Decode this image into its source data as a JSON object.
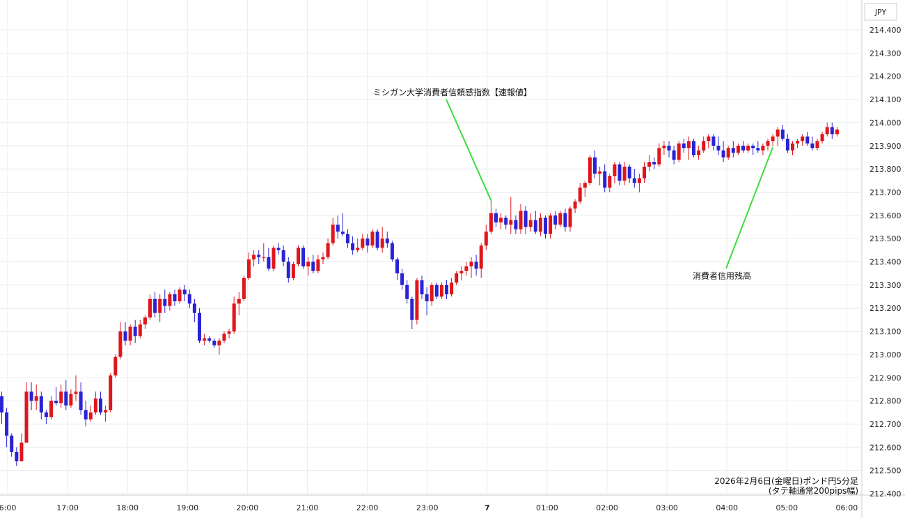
{
  "chart_data": {
    "type": "candlestick",
    "currency_label": "JPY",
    "y_ticks": [
      "214.400",
      "214.300",
      "214.200",
      "214.100",
      "214.000",
      "213.900",
      "213.800",
      "213.700",
      "213.600",
      "213.500",
      "213.400",
      "213.300",
      "213.200",
      "213.100",
      "213.000",
      "212.900",
      "212.800",
      "212.700",
      "212.600",
      "212.500",
      "212.400"
    ],
    "ylim": [
      212.4,
      214.45
    ],
    "x_ticks": [
      {
        "label": "6:00",
        "bold": false
      },
      {
        "label": "17:00",
        "bold": false
      },
      {
        "label": "18:00",
        "bold": false
      },
      {
        "label": "19:00",
        "bold": false
      },
      {
        "label": "20:00",
        "bold": false
      },
      {
        "label": "21:00",
        "bold": false
      },
      {
        "label": "22:00",
        "bold": false
      },
      {
        "label": "23:00",
        "bold": false
      },
      {
        "label": "7",
        "bold": true
      },
      {
        "label": "01:00",
        "bold": false
      },
      {
        "label": "02:00",
        "bold": false
      },
      {
        "label": "03:00",
        "bold": false
      },
      {
        "label": "04:00",
        "bold": false
      },
      {
        "label": "05:00",
        "bold": false
      },
      {
        "label": "06:00",
        "bold": false
      }
    ],
    "ohlc": [
      [
        212.82,
        212.84,
        212.7,
        212.75
      ],
      [
        212.75,
        212.77,
        212.6,
        212.65
      ],
      [
        212.65,
        212.66,
        212.56,
        212.58
      ],
      [
        212.58,
        212.6,
        212.52,
        212.54
      ],
      [
        212.54,
        212.66,
        212.54,
        212.62
      ],
      [
        212.62,
        212.88,
        212.62,
        212.84
      ],
      [
        212.84,
        212.88,
        212.76,
        212.8
      ],
      [
        212.8,
        212.87,
        212.76,
        212.82
      ],
      [
        212.82,
        212.84,
        212.72,
        212.75
      ],
      [
        212.75,
        212.76,
        212.7,
        212.73
      ],
      [
        212.73,
        212.82,
        212.72,
        212.8
      ],
      [
        212.8,
        212.86,
        212.78,
        212.79
      ],
      [
        212.79,
        212.87,
        212.77,
        212.84
      ],
      [
        212.84,
        212.89,
        212.76,
        212.78
      ],
      [
        212.78,
        212.85,
        212.77,
        212.83
      ],
      [
        212.83,
        212.91,
        212.8,
        212.84
      ],
      [
        212.84,
        212.88,
        212.74,
        212.76
      ],
      [
        212.76,
        212.8,
        212.69,
        212.72
      ],
      [
        212.72,
        212.78,
        212.71,
        212.75
      ],
      [
        212.75,
        212.84,
        212.74,
        212.81
      ],
      [
        212.81,
        212.84,
        212.74,
        212.75
      ],
      [
        212.75,
        212.78,
        212.71,
        212.76
      ],
      [
        212.76,
        212.92,
        212.75,
        212.91
      ],
      [
        212.91,
        213.0,
        212.9,
        212.99
      ],
      [
        212.99,
        213.14,
        212.98,
        213.1
      ],
      [
        213.1,
        213.14,
        213.04,
        213.06
      ],
      [
        213.06,
        213.13,
        213.04,
        213.12
      ],
      [
        213.12,
        213.15,
        213.05,
        213.08
      ],
      [
        213.08,
        213.15,
        213.07,
        213.13
      ],
      [
        213.13,
        213.17,
        213.11,
        213.16
      ],
      [
        213.16,
        213.26,
        213.15,
        213.24
      ],
      [
        213.24,
        213.27,
        213.16,
        213.18
      ],
      [
        213.18,
        213.26,
        213.14,
        213.24
      ],
      [
        213.24,
        213.28,
        213.18,
        213.21
      ],
      [
        213.21,
        213.27,
        213.19,
        213.26
      ],
      [
        213.26,
        213.28,
        213.21,
        213.23
      ],
      [
        213.23,
        213.29,
        213.22,
        213.28
      ],
      [
        213.28,
        213.3,
        213.23,
        213.26
      ],
      [
        213.26,
        213.28,
        213.2,
        213.22
      ],
      [
        213.22,
        213.24,
        213.14,
        213.18
      ],
      [
        213.18,
        213.2,
        213.05,
        213.06
      ],
      [
        213.06,
        213.09,
        213.04,
        213.07
      ],
      [
        213.07,
        213.08,
        213.05,
        213.06
      ],
      [
        213.06,
        213.07,
        213.03,
        213.04
      ],
      [
        213.04,
        213.07,
        213.0,
        213.06
      ],
      [
        213.06,
        213.1,
        213.05,
        213.09
      ],
      [
        213.09,
        213.11,
        213.07,
        213.1
      ],
      [
        213.1,
        213.25,
        213.09,
        213.22
      ],
      [
        213.22,
        213.27,
        213.17,
        213.24
      ],
      [
        213.24,
        213.34,
        213.23,
        213.33
      ],
      [
        213.33,
        213.44,
        213.32,
        213.41
      ],
      [
        213.41,
        213.45,
        213.38,
        213.43
      ],
      [
        213.43,
        213.45,
        213.39,
        213.42
      ],
      [
        213.42,
        213.48,
        213.4,
        213.42
      ],
      [
        213.42,
        213.46,
        213.36,
        213.37
      ],
      [
        213.37,
        213.47,
        213.36,
        213.46
      ],
      [
        213.46,
        213.48,
        213.43,
        213.45
      ],
      [
        213.45,
        213.47,
        213.38,
        213.4
      ],
      [
        213.4,
        213.42,
        213.31,
        213.33
      ],
      [
        213.33,
        213.4,
        213.32,
        213.39
      ],
      [
        213.39,
        213.47,
        213.38,
        213.46
      ],
      [
        213.46,
        213.47,
        213.37,
        213.38
      ],
      [
        213.38,
        213.42,
        213.34,
        213.4
      ],
      [
        213.4,
        213.43,
        213.35,
        213.36
      ],
      [
        213.36,
        213.43,
        213.35,
        213.41
      ],
      [
        213.41,
        213.44,
        213.39,
        213.42
      ],
      [
        213.42,
        213.5,
        213.41,
        213.48
      ],
      [
        213.48,
        213.59,
        213.47,
        213.56
      ],
      [
        213.56,
        213.6,
        213.5,
        213.53
      ],
      [
        213.53,
        213.61,
        213.51,
        213.52
      ],
      [
        213.52,
        213.54,
        213.46,
        213.48
      ],
      [
        213.48,
        213.51,
        213.43,
        213.45
      ],
      [
        213.45,
        213.5,
        213.44,
        213.46
      ],
      [
        213.46,
        213.52,
        213.45,
        213.5
      ],
      [
        213.5,
        213.52,
        213.44,
        213.47
      ],
      [
        213.47,
        213.54,
        213.46,
        213.53
      ],
      [
        213.53,
        213.54,
        213.45,
        213.46
      ],
      [
        213.46,
        213.55,
        213.44,
        213.5
      ],
      [
        213.5,
        213.53,
        213.46,
        213.48
      ],
      [
        213.48,
        213.49,
        213.4,
        213.41
      ],
      [
        213.41,
        213.42,
        213.32,
        213.35
      ],
      [
        213.35,
        213.37,
        213.28,
        213.3
      ],
      [
        213.3,
        213.32,
        213.22,
        213.24
      ],
      [
        213.24,
        213.25,
        213.11,
        213.15
      ],
      [
        213.15,
        213.33,
        213.13,
        213.32
      ],
      [
        213.32,
        213.34,
        213.24,
        213.26
      ],
      [
        213.26,
        213.29,
        213.17,
        213.23
      ],
      [
        213.23,
        213.31,
        213.21,
        213.3
      ],
      [
        213.3,
        213.31,
        213.24,
        213.25
      ],
      [
        213.25,
        213.31,
        213.24,
        213.3
      ],
      [
        213.3,
        213.32,
        213.24,
        213.26
      ],
      [
        213.26,
        213.33,
        213.25,
        213.31
      ],
      [
        213.31,
        213.36,
        213.3,
        213.35
      ],
      [
        213.35,
        213.38,
        213.32,
        213.36
      ],
      [
        213.36,
        213.4,
        213.34,
        213.38
      ],
      [
        213.38,
        213.42,
        213.33,
        213.4
      ],
      [
        213.4,
        213.43,
        213.34,
        213.37
      ],
      [
        213.37,
        213.48,
        213.33,
        213.47
      ],
      [
        213.47,
        213.56,
        213.45,
        213.53
      ],
      [
        213.53,
        213.67,
        213.52,
        213.61
      ],
      [
        213.61,
        213.63,
        213.55,
        213.57
      ],
      [
        213.57,
        213.61,
        213.54,
        213.59
      ],
      [
        213.59,
        213.6,
        213.54,
        213.56
      ],
      [
        213.56,
        213.68,
        213.52,
        213.58
      ],
      [
        213.58,
        213.6,
        213.52,
        213.54
      ],
      [
        213.54,
        213.65,
        213.52,
        213.62
      ],
      [
        213.62,
        213.64,
        213.52,
        213.55
      ],
      [
        213.55,
        213.61,
        213.53,
        213.58
      ],
      [
        213.58,
        213.62,
        213.52,
        213.53
      ],
      [
        213.53,
        213.61,
        213.51,
        213.59
      ],
      [
        213.59,
        213.6,
        213.5,
        213.52
      ],
      [
        213.52,
        213.61,
        213.5,
        213.6
      ],
      [
        213.6,
        213.62,
        213.54,
        213.56
      ],
      [
        213.56,
        213.62,
        213.55,
        213.61
      ],
      [
        213.61,
        213.63,
        213.53,
        213.55
      ],
      [
        213.55,
        213.64,
        213.53,
        213.63
      ],
      [
        213.63,
        213.67,
        213.61,
        213.66
      ],
      [
        213.66,
        213.74,
        213.65,
        213.72
      ],
      [
        213.72,
        213.75,
        213.68,
        213.74
      ],
      [
        213.74,
        213.86,
        213.73,
        213.85
      ],
      [
        213.85,
        213.88,
        213.76,
        213.78
      ],
      [
        213.78,
        213.81,
        213.73,
        213.79
      ],
      [
        213.79,
        213.82,
        213.7,
        213.72
      ],
      [
        213.72,
        213.78,
        213.7,
        213.77
      ],
      [
        213.77,
        213.83,
        213.74,
        213.82
      ],
      [
        213.82,
        213.83,
        213.73,
        213.75
      ],
      [
        213.75,
        213.83,
        213.73,
        213.81
      ],
      [
        213.81,
        213.82,
        213.74,
        213.76
      ],
      [
        213.76,
        213.8,
        213.72,
        213.74
      ],
      [
        213.74,
        213.78,
        213.7,
        213.76
      ],
      [
        213.76,
        213.83,
        213.74,
        213.81
      ],
      [
        213.81,
        213.86,
        213.79,
        213.83
      ],
      [
        213.83,
        213.85,
        213.8,
        213.82
      ],
      [
        213.82,
        213.91,
        213.81,
        213.89
      ],
      [
        213.89,
        213.92,
        213.86,
        213.9
      ],
      [
        213.9,
        213.92,
        213.85,
        213.88
      ],
      [
        213.88,
        213.9,
        213.82,
        213.84
      ],
      [
        213.84,
        213.92,
        213.83,
        213.91
      ],
      [
        213.91,
        213.93,
        213.87,
        213.89
      ],
      [
        213.89,
        213.94,
        213.84,
        213.92
      ],
      [
        213.92,
        213.93,
        213.85,
        213.86
      ],
      [
        213.86,
        213.9,
        213.84,
        213.88
      ],
      [
        213.88,
        213.94,
        213.87,
        213.92
      ],
      [
        213.92,
        213.95,
        213.89,
        213.94
      ],
      [
        213.94,
        213.95,
        213.88,
        213.9
      ],
      [
        213.9,
        213.94,
        213.86,
        213.88
      ],
      [
        213.88,
        213.92,
        213.83,
        213.85
      ],
      [
        213.85,
        213.9,
        213.84,
        213.89
      ],
      [
        213.89,
        213.92,
        213.85,
        213.87
      ],
      [
        213.87,
        213.91,
        213.86,
        213.9
      ],
      [
        213.9,
        213.92,
        213.87,
        213.88
      ],
      [
        213.88,
        213.91,
        213.87,
        213.9
      ],
      [
        213.9,
        213.91,
        213.86,
        213.89
      ],
      [
        213.89,
        213.92,
        213.87,
        213.88
      ],
      [
        213.88,
        213.91,
        213.86,
        213.9
      ],
      [
        213.9,
        213.93,
        213.88,
        213.92
      ],
      [
        213.92,
        213.95,
        213.9,
        213.94
      ],
      [
        213.94,
        213.98,
        213.9,
        213.97
      ],
      [
        213.97,
        213.99,
        213.92,
        213.93
      ],
      [
        213.93,
        213.95,
        213.87,
        213.88
      ],
      [
        213.88,
        213.92,
        213.86,
        213.91
      ],
      [
        213.91,
        213.93,
        213.89,
        213.92
      ],
      [
        213.92,
        213.95,
        213.9,
        213.94
      ],
      [
        213.94,
        213.96,
        213.9,
        213.91
      ],
      [
        213.91,
        213.94,
        213.88,
        213.89
      ],
      [
        213.89,
        213.93,
        213.88,
        213.92
      ],
      [
        213.92,
        213.96,
        213.91,
        213.95
      ],
      [
        213.95,
        214.0,
        213.94,
        213.98
      ],
      [
        213.98,
        214.0,
        213.93,
        213.95
      ],
      [
        213.95,
        213.98,
        213.94,
        213.97
      ]
    ],
    "annotations": [
      {
        "text": "ミシガン大学消費者信頼感指数【速報値】",
        "candle_index": 99,
        "anchor": "high"
      },
      {
        "text": "消費者信用残高",
        "candle_index": 156,
        "anchor": "low"
      }
    ],
    "footnote_line1": "2026年2月6日(金曜日)ポンド円5分足",
    "footnote_line2": "(タテ軸通常200pips幅)",
    "colors": {
      "up": "#e0161b",
      "down": "#2a23d6",
      "grid": "#e9edf1",
      "annotation_line": "#3ddc3d"
    }
  }
}
